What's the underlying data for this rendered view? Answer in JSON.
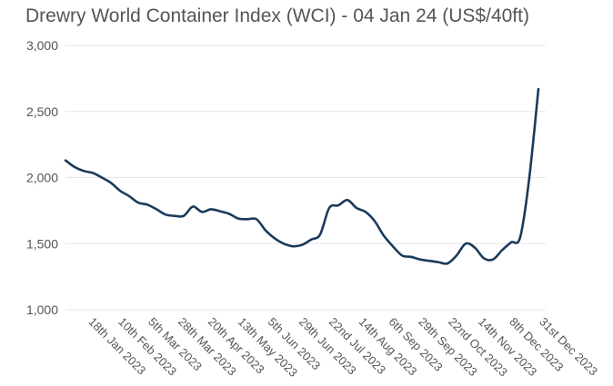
{
  "chart_data": {
    "type": "line",
    "title": "Drewry World Container Index (WCI) - 04 Jan 24 (US$/40ft)",
    "xlabel": "",
    "ylabel": "",
    "ylim": [
      1000,
      3000
    ],
    "yticks": [
      1000,
      1500,
      2000,
      2500,
      3000
    ],
    "ytick_labels": [
      "1,000",
      "1,500",
      "2,000",
      "2,500",
      "3,000"
    ],
    "grid": true,
    "legend": "none",
    "line_color": "#1a3a5c",
    "grid_color": "#e6e6e6",
    "x_tick_labels": [
      "18th Jan 2023",
      "10th Feb 2023",
      "5th Mar 2023",
      "28th Mar 2023",
      "20th Apr 2023",
      "13th May 2023",
      "5th Jun 2023",
      "29th Jun 2023",
      "22nd Jul 2023",
      "14th Aug 2023",
      "6th Sep 2023",
      "29th Sep 2023",
      "22nd Oct 2023",
      "14th Nov 2023",
      "8th Dec 2023",
      "31st Dec 2023"
    ],
    "x": [
      "05 Jan 2023",
      "12 Jan 2023",
      "19 Jan 2023",
      "26 Jan 2023",
      "02 Feb 2023",
      "09 Feb 2023",
      "16 Feb 2023",
      "23 Feb 2023",
      "02 Mar 2023",
      "09 Mar 2023",
      "16 Mar 2023",
      "23 Mar 2023",
      "30 Mar 2023",
      "06 Apr 2023",
      "13 Apr 2023",
      "20 Apr 2023",
      "27 Apr 2023",
      "04 May 2023",
      "11 May 2023",
      "18 May 2023",
      "25 May 2023",
      "01 Jun 2023",
      "08 Jun 2023",
      "15 Jun 2023",
      "22 Jun 2023",
      "29 Jun 2023",
      "06 Jul 2023",
      "13 Jul 2023",
      "20 Jul 2023",
      "27 Jul 2023",
      "03 Aug 2023",
      "10 Aug 2023",
      "17 Aug 2023",
      "24 Aug 2023",
      "31 Aug 2023",
      "07 Sep 2023",
      "14 Sep 2023",
      "21 Sep 2023",
      "28 Sep 2023",
      "05 Oct 2023",
      "12 Oct 2023",
      "19 Oct 2023",
      "26 Oct 2023",
      "02 Nov 2023",
      "09 Nov 2023",
      "16 Nov 2023",
      "23 Nov 2023",
      "30 Nov 2023",
      "07 Dec 2023",
      "14 Dec 2023",
      "21 Dec 2023",
      "28 Dec 2023",
      "04 Jan 2024"
    ],
    "series": [
      {
        "values": [
          2130,
          2080,
          2050,
          2035,
          2000,
          1960,
          1900,
          1860,
          1810,
          1795,
          1760,
          1720,
          1710,
          1710,
          1780,
          1740,
          1760,
          1745,
          1725,
          1690,
          1685,
          1685,
          1600,
          1540,
          1500,
          1480,
          1490,
          1530,
          1570,
          1770,
          1790,
          1830,
          1770,
          1740,
          1670,
          1560,
          1480,
          1410,
          1400,
          1380,
          1370,
          1360,
          1350,
          1410,
          1500,
          1470,
          1390,
          1380,
          1450,
          1510,
          1550,
          2000,
          2670
        ]
      }
    ]
  }
}
